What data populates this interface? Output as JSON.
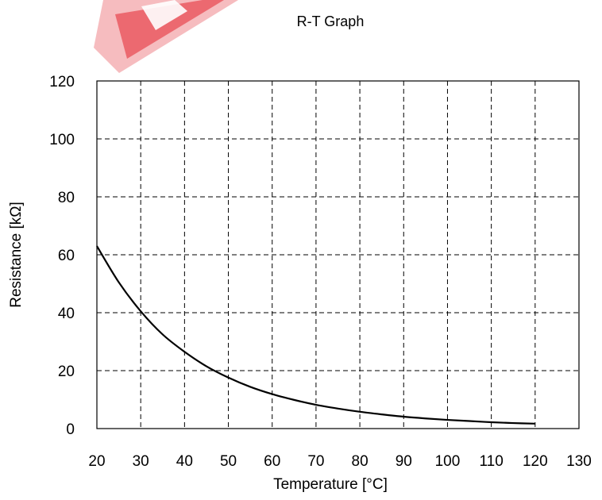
{
  "chart_data": {
    "type": "line",
    "title": "R-T Graph",
    "xlabel": "Temperature [°C]",
    "ylabel": "Resistance [kΩ]",
    "xlim": [
      20,
      130
    ],
    "ylim": [
      0,
      120
    ],
    "x_ticks": [
      20,
      30,
      40,
      50,
      60,
      70,
      80,
      90,
      100,
      110,
      120,
      130
    ],
    "y_ticks": [
      0,
      20,
      40,
      60,
      80,
      100,
      120
    ],
    "grid": true,
    "series": [
      {
        "x": [
          20,
          25,
          30,
          35,
          40,
          45,
          50,
          55,
          60,
          65,
          70,
          75,
          80,
          85,
          90,
          95,
          100,
          105,
          110,
          115,
          120
        ],
        "y": [
          63.0,
          50.5,
          40.5,
          32.5,
          26.5,
          21.5,
          17.6,
          14.4,
          11.9,
          9.9,
          8.2,
          6.9,
          5.8,
          4.9,
          4.1,
          3.5,
          3.0,
          2.6,
          2.2,
          1.9,
          1.7
        ]
      }
    ]
  },
  "watermark_colors": [
    "#e8454d",
    "#f6b5b9"
  ]
}
